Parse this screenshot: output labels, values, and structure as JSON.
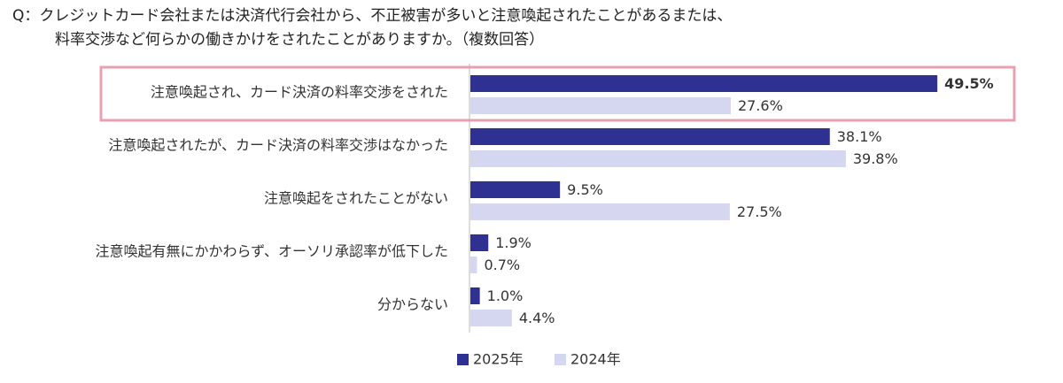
{
  "chart_data": {
    "type": "bar",
    "orientation": "horizontal",
    "title": [
      "Q：クレジットカード会社または決済代行会社から、不正被害が多いと注意喚起されたことがあるまたは、",
      "料率交渉など何らかの働きかけをされたことがありますか。（複数回答）"
    ],
    "categories": [
      "注意喚起され、カード決済の料率交渉をされた",
      "注意喚起されたが、カード決済の料率交渉はなかった",
      "注意喚起をされたことがない",
      "注意喚起有無にかかわらず、オーソリ承認率が低下した",
      "分からない"
    ],
    "series": [
      {
        "name": "2025年",
        "color": "#2e3192",
        "values": [
          49.5,
          38.1,
          9.5,
          1.9,
          1.0
        ],
        "value_labels": [
          "49.5%",
          "38.1%",
          "9.5%",
          "1.9%",
          "1.0%"
        ]
      },
      {
        "name": "2024年",
        "color": "#d5d7f0",
        "values": [
          27.6,
          39.8,
          27.5,
          0.7,
          4.4
        ],
        "value_labels": [
          "27.6%",
          "39.8%",
          "27.5%",
          "0.7%",
          "4.4%"
        ]
      }
    ]
  }
}
